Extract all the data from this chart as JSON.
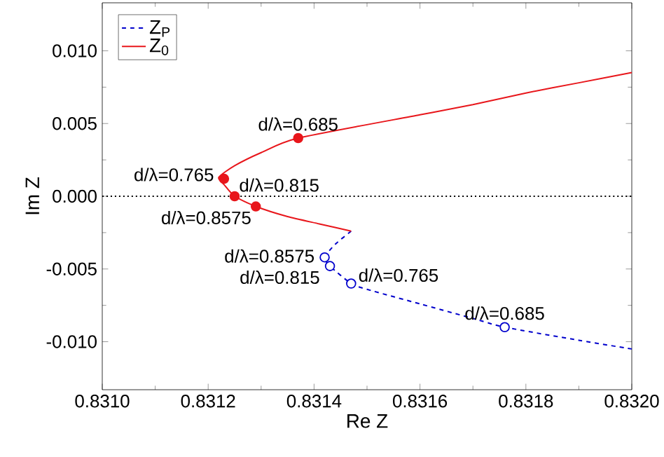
{
  "chart_data": {
    "type": "line",
    "xlabel": "Re Z",
    "ylabel": "Im Z",
    "xlim": [
      0.831,
      0.832
    ],
    "ylim": [
      -0.0133,
      0.0133
    ],
    "xticks": [
      {
        "value": 0.831,
        "label": "0.8310"
      },
      {
        "value": 0.8312,
        "label": "0.8312"
      },
      {
        "value": 0.8314,
        "label": "0.8314"
      },
      {
        "value": 0.8316,
        "label": "0.8316"
      },
      {
        "value": 0.8318,
        "label": "0.8318"
      },
      {
        "value": 0.832,
        "label": "0.8320"
      }
    ],
    "yticks": [
      {
        "value": -0.01,
        "label": "-0.010"
      },
      {
        "value": -0.005,
        "label": "-0.005"
      },
      {
        "value": 0,
        "label": "0.000"
      },
      {
        "value": 0.005,
        "label": "0.005"
      },
      {
        "value": 0.01,
        "label": "0.010"
      }
    ],
    "legend": "top left",
    "series": [
      {
        "name": "Z$_{P}$",
        "color": "#0000cc",
        "line_style": "dashed",
        "x": [
          0.83147,
          0.83144,
          0.83142,
          0.83143,
          0.83147,
          0.8315,
          0.8316,
          0.8317,
          0.83176,
          0.8319,
          0.832
        ],
        "values": [
          -0.0024,
          -0.0033,
          -0.0042,
          -0.0048,
          -0.006,
          -0.0064,
          -0.0074,
          -0.0084,
          -0.009,
          -0.0099,
          -0.0105
        ]
      },
      {
        "name": "Z$_{0}$",
        "color": "#e8161b",
        "line_style": "solid",
        "x": [
          0.832,
          0.8319,
          0.8318,
          0.8317,
          0.8316,
          0.83137,
          0.8313,
          0.83125,
          0.83122,
          0.83123,
          0.83125,
          0.83129,
          0.83135,
          0.83141,
          0.83147
        ],
        "values": [
          0.0085,
          0.0078,
          0.0071,
          0.0063,
          0.0056,
          0.004,
          0.003,
          0.0021,
          0.0013,
          0.0008,
          0.0,
          -0.0007,
          -0.0014,
          -0.0019,
          -0.0024
        ]
      },
      {
        "type": "scatter",
        "color": "#e8161b",
        "x": [
          0.83137,
          0.83123,
          0.83125,
          0.83129
        ],
        "values": [
          0.004,
          0.0012,
          0.0,
          -0.0007
        ]
      },
      {
        "type": "scatter",
        "color": "#0000cc",
        "x": [
          0.83142,
          0.83143,
          0.83147,
          0.83176
        ],
        "values": [
          -0.0042,
          -0.0048,
          -0.006,
          -0.009
        ]
      }
    ],
    "ref_lines": [
      {
        "axis": "y",
        "value": 0,
        "line_style": "dotted",
        "color": "#000000"
      }
    ],
    "annotations": [
      {
        "text": "d/λ=0.685",
        "x": 0.83137,
        "y": 0.004
      },
      {
        "text": "d/λ=0.765",
        "x": 0.83123,
        "y": 0.0012
      },
      {
        "text": "d/λ=0.815",
        "x": 0.83125,
        "y": 0.0
      },
      {
        "text": "d/λ=0.8575",
        "x": 0.83129,
        "y": -0.0007
      },
      {
        "text": "d/λ=0.8575",
        "x": 0.83142,
        "y": -0.0042
      },
      {
        "text": "d/λ=0.815",
        "x": 0.83143,
        "y": -0.0048
      },
      {
        "text": "d/λ=0.765",
        "x": 0.83147,
        "y": -0.006
      },
      {
        "text": "d/λ=0.685",
        "x": 0.83176,
        "y": -0.009
      }
    ]
  }
}
